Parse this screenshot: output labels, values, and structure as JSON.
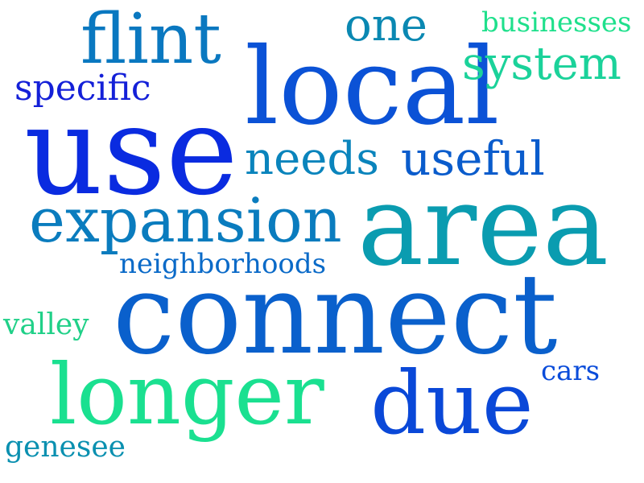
{
  "words": [
    {
      "text": "flint",
      "color": "#0a78c0"
    },
    {
      "text": "one",
      "color": "#0a88b2"
    },
    {
      "text": "businesses",
      "color": "#1fe08c"
    },
    {
      "text": "local",
      "color": "#0b52d6"
    },
    {
      "text": "system",
      "color": "#1bd29a"
    },
    {
      "text": "specific",
      "color": "#1420d8"
    },
    {
      "text": "use",
      "color": "#0a2be0"
    },
    {
      "text": "needs",
      "color": "#0a84bc"
    },
    {
      "text": "useful",
      "color": "#0a5ccc"
    },
    {
      "text": "expansion",
      "color": "#0a7cbe"
    },
    {
      "text": "area",
      "color": "#0a9cb0"
    },
    {
      "text": "neighborhoods",
      "color": "#0a6ac8"
    },
    {
      "text": "connect",
      "color": "#0a60cc"
    },
    {
      "text": "valley",
      "color": "#20d088"
    },
    {
      "text": "cars",
      "color": "#0a4cda"
    },
    {
      "text": "longer",
      "color": "#1ae090"
    },
    {
      "text": "due",
      "color": "#0a48d8"
    },
    {
      "text": "genesee",
      "color": "#0a90b0"
    }
  ]
}
